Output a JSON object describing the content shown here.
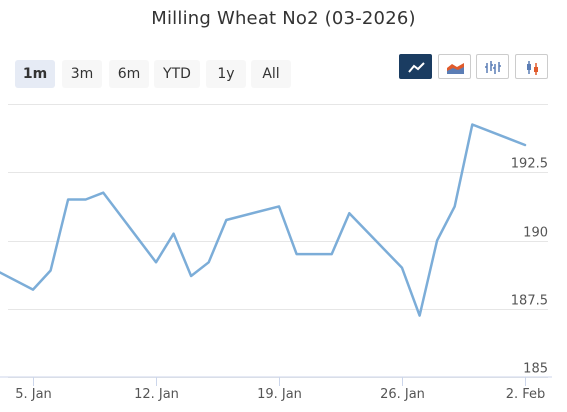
{
  "chart_data": {
    "type": "line",
    "title": "Milling Wheat No2 (03-2026)",
    "series": [
      {
        "values": [
          {
            "date": "2026-01-02",
            "y": 189.2
          },
          {
            "date": "2026-01-05",
            "y": 188.2
          },
          {
            "date": "2026-01-06",
            "y": 188.9
          },
          {
            "date": "2026-01-07",
            "y": 191.5
          },
          {
            "date": "2026-01-08",
            "y": 191.5
          },
          {
            "date": "2026-01-09",
            "y": 191.75
          },
          {
            "date": "2026-01-12",
            "y": 189.2
          },
          {
            "date": "2026-01-13",
            "y": 190.25
          },
          {
            "date": "2026-01-14",
            "y": 188.7
          },
          {
            "date": "2026-01-15",
            "y": 189.2
          },
          {
            "date": "2026-01-16",
            "y": 190.75
          },
          {
            "date": "2026-01-19",
            "y": 191.25
          },
          {
            "date": "2026-01-20",
            "y": 189.5
          },
          {
            "date": "2026-01-21",
            "y": 189.5
          },
          {
            "date": "2026-01-22",
            "y": 189.5
          },
          {
            "date": "2026-01-23",
            "y": 191.0
          },
          {
            "date": "2026-01-26",
            "y": 189.0
          },
          {
            "date": "2026-01-27",
            "y": 187.25
          },
          {
            "date": "2026-01-28",
            "y": 190.0
          },
          {
            "date": "2026-01-29",
            "y": 191.25
          },
          {
            "date": "2026-01-30",
            "y": 194.25
          },
          {
            "date": "2026-02-02",
            "y": 193.5
          }
        ]
      }
    ],
    "x_ticks": [
      "5. Jan",
      "12. Jan",
      "19. Jan",
      "26. Jan",
      "2. Feb"
    ],
    "y_ticks": [
      "185",
      "187.5",
      "190",
      "192.5"
    ],
    "ylim": [
      185,
      195
    ],
    "grid": true,
    "y_axis_side": "right",
    "line_color": "#7cadd8",
    "grid_color": "#e6e6e6"
  },
  "range_selector": {
    "buttons": [
      "1m",
      "3m",
      "6m",
      "YTD",
      "1y",
      "All"
    ],
    "selected": "1m"
  },
  "chart_type_buttons": [
    {
      "icon": "line-chart-icon",
      "active": true
    },
    {
      "icon": "area-chart-icon",
      "active": false
    },
    {
      "icon": "ohlc-chart-icon",
      "active": false
    },
    {
      "icon": "candlestick-chart-icon",
      "active": false
    }
  ],
  "colors": {
    "active_button": "#1a3c61",
    "area_fill": "#e05a2b",
    "area_fill_2": "#5b7db5"
  }
}
